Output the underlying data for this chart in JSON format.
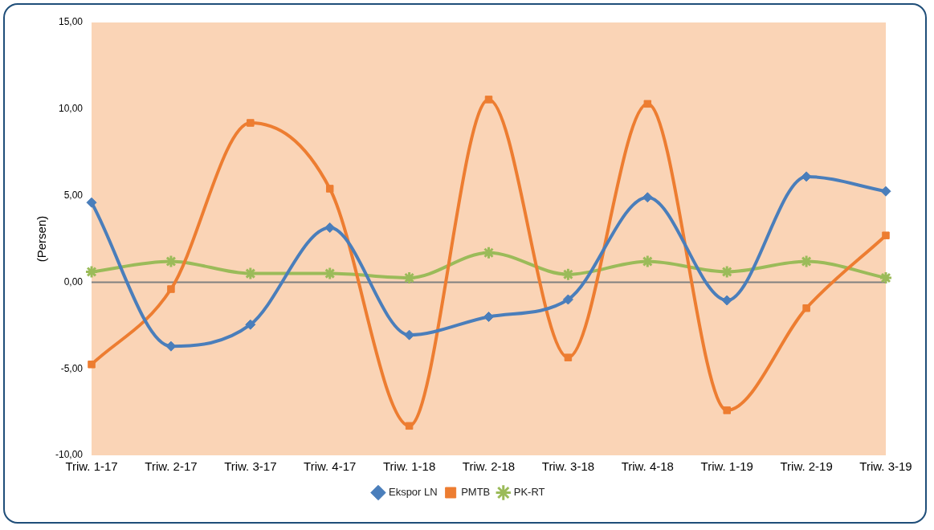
{
  "chart_data": {
    "type": "line",
    "ylabel": "(Persen)",
    "categories": [
      "Triw. 1-17",
      "Triw. 2-17",
      "Triw. 3-17",
      "Triw. 4-17",
      "Triw. 1-18",
      "Triw. 2-18",
      "Triw. 3-18",
      "Triw. 4-18",
      "Triw. 1-19",
      "Triw. 2-19",
      "Triw. 3-19"
    ],
    "series": [
      {
        "name": "Ekspor LN",
        "color": "#4a7ebb",
        "marker": "diamond",
        "values": [
          4.6,
          -3.7,
          -2.45,
          3.15,
          -3.05,
          -2.0,
          -1.0,
          4.9,
          -1.05,
          6.1,
          5.25
        ]
      },
      {
        "name": "PMTB",
        "color": "#ed7d31",
        "marker": "square",
        "values": [
          -4.75,
          -0.4,
          9.2,
          5.4,
          -8.3,
          10.55,
          -4.35,
          10.3,
          -7.4,
          -1.5,
          2.7
        ]
      },
      {
        "name": "PK-RT",
        "color": "#9bbb59",
        "marker": "cross",
        "values": [
          0.6,
          1.2,
          0.5,
          0.5,
          0.25,
          1.7,
          0.45,
          1.2,
          0.6,
          1.2,
          0.25
        ]
      }
    ],
    "ylim": [
      -10,
      15
    ],
    "yticks": [
      {
        "value": -10,
        "label": "-10,00"
      },
      {
        "value": -5,
        "label": "-5,00"
      },
      {
        "value": 0,
        "label": "0,00"
      },
      {
        "value": 5,
        "label": "5,00"
      },
      {
        "value": 10,
        "label": "10,00"
      },
      {
        "value": 15,
        "label": "15,00"
      }
    ],
    "ref_lines": [
      {
        "axis": "y",
        "value": 0,
        "color": "#808080"
      }
    ],
    "grid": false,
    "legend": "bottom",
    "line_style": "solid"
  }
}
